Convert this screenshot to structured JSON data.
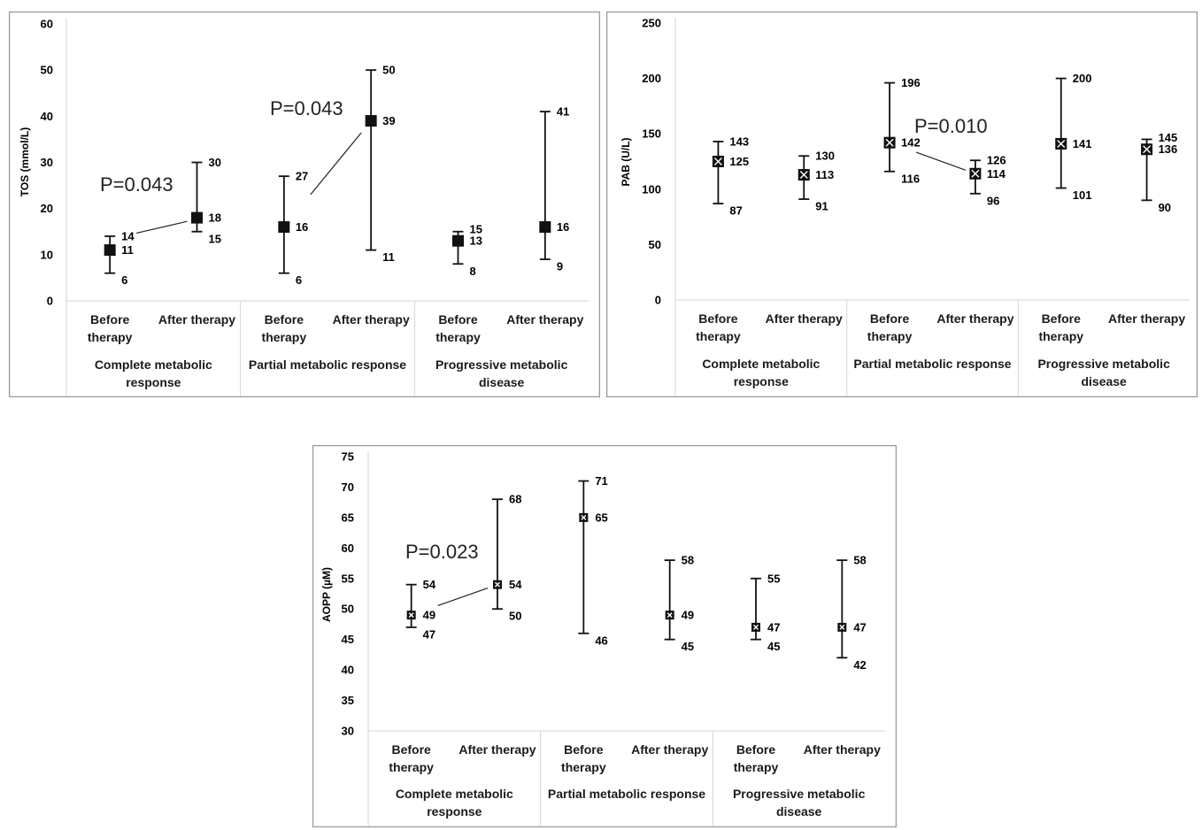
{
  "chart_data": [
    {
      "type": "error-bar",
      "id": "tos",
      "ylabel": "TOS (mmol/L)",
      "ylim": [
        0,
        60
      ],
      "yticks": [
        0,
        10,
        20,
        30,
        40,
        50,
        60
      ],
      "marker": "square",
      "categories": [
        "Before therapy",
        "After therapy",
        "Before therapy",
        "After therapy",
        "Before therapy",
        "After therapy"
      ],
      "groups": [
        "Complete metabolic response",
        "Partial metabolic response",
        "Progressive metabolic disease"
      ],
      "points": [
        {
          "center": 11,
          "upper": 14,
          "lower": 6,
          "center_label": "11",
          "upper_label": "14",
          "lower_label": "6"
        },
        {
          "center": 18,
          "upper": 30,
          "lower": 15,
          "center_label": "18",
          "upper_label": "30",
          "lower_label": "15"
        },
        {
          "center": 16,
          "upper": 27,
          "lower": 6,
          "center_label": "16",
          "upper_label": "27",
          "lower_label": "6"
        },
        {
          "center": 39,
          "upper": 50,
          "lower": 11,
          "center_label": "39",
          "upper_label": "50",
          "lower_label": "11"
        },
        {
          "center": 13,
          "upper": 15,
          "lower": 8,
          "center_label": "13",
          "upper_label": "15",
          "lower_label": "8"
        },
        {
          "center": 16,
          "upper": 41,
          "lower": 9,
          "center_label": "16",
          "upper_label": "41",
          "lower_label": "9"
        }
      ],
      "annotations": [
        {
          "text": "P=0.043",
          "from_point": 0,
          "to_point": 1
        },
        {
          "text": "P=0.043",
          "from_point": 2,
          "to_point": 3
        }
      ]
    },
    {
      "type": "error-bar",
      "id": "pab",
      "ylabel": "PAB (U/L)",
      "ylim": [
        0,
        250
      ],
      "yticks": [
        0,
        50,
        100,
        150,
        200,
        250
      ],
      "marker": "square-x",
      "categories": [
        "Before therapy",
        "After therapy",
        "Before therapy",
        "After therapy",
        "Before therapy",
        "After therapy"
      ],
      "groups": [
        "Complete metabolic response",
        "Partial metabolic response",
        "Progressive metabolic disease"
      ],
      "points": [
        {
          "center": 125,
          "upper": 143,
          "lower": 87,
          "center_label": "125",
          "upper_label": "143",
          "lower_label": "87"
        },
        {
          "center": 113,
          "upper": 130,
          "lower": 91,
          "center_label": "113",
          "upper_label": "130",
          "lower_label": "91"
        },
        {
          "center": 142,
          "upper": 196,
          "lower": 116,
          "center_label": "142",
          "upper_label": "196",
          "lower_label": "116"
        },
        {
          "center": 114,
          "upper": 126,
          "lower": 96,
          "center_label": "114",
          "upper_label": "126",
          "lower_label": "96"
        },
        {
          "center": 141,
          "upper": 200,
          "lower": 101,
          "center_label": "141",
          "upper_label": "200",
          "lower_label": "101"
        },
        {
          "center": 136,
          "upper": 145,
          "lower": 90,
          "center_label": "136",
          "upper_label": "145",
          "lower_label": "90"
        }
      ],
      "annotations": [
        {
          "text": "P=0.010",
          "from_point": 2,
          "to_point": 3
        }
      ]
    },
    {
      "type": "error-bar",
      "id": "aopp",
      "ylabel": "AOPP (µM)",
      "ylim": [
        30,
        75
      ],
      "yticks": [
        30,
        35,
        40,
        45,
        50,
        55,
        60,
        65,
        70,
        75
      ],
      "marker": "small-square-x",
      "categories": [
        "Before therapy",
        "After therapy",
        "Before therapy",
        "After therapy",
        "Before therapy",
        "After therapy"
      ],
      "groups": [
        "Complete metabolic response",
        "Partial metabolic response",
        "Progressive metabolic disease"
      ],
      "points": [
        {
          "center": 49,
          "upper": 54,
          "lower": 47,
          "center_label": "49",
          "upper_label": "54",
          "lower_label": "47"
        },
        {
          "center": 54,
          "upper": 68,
          "lower": 50,
          "center_label": "54",
          "upper_label": "68",
          "lower_label": "50"
        },
        {
          "center": 65,
          "upper": 71,
          "lower": 46,
          "center_label": "65",
          "upper_label": "71",
          "lower_label": "46"
        },
        {
          "center": 49,
          "upper": 58,
          "lower": 45,
          "center_label": "49",
          "upper_label": "58",
          "lower_label": "45"
        },
        {
          "center": 47,
          "upper": 55,
          "lower": 45,
          "center_label": "47",
          "upper_label": "55",
          "lower_label": "45"
        },
        {
          "center": 47,
          "upper": 58,
          "lower": 42,
          "center_label": "47",
          "upper_label": "58",
          "lower_label": "42"
        }
      ],
      "annotations": [
        {
          "text": "P=0.023",
          "from_point": 0,
          "to_point": 1
        }
      ]
    }
  ]
}
